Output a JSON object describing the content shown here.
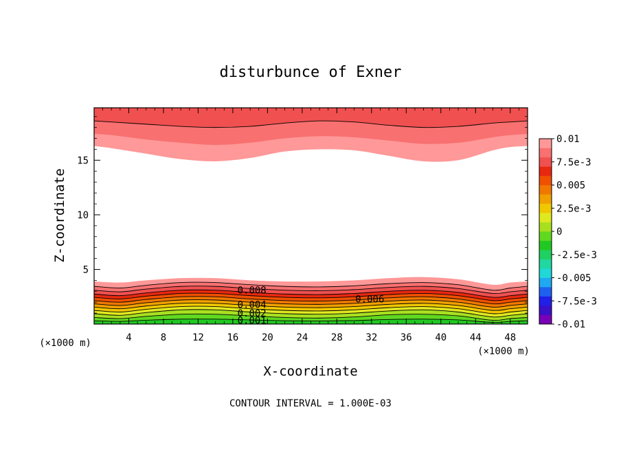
{
  "chart_data": {
    "type": "heatmap",
    "title": "disturbunce of Exner",
    "xlabel": "X-coordinate",
    "ylabel": "Z-coordinate",
    "x_unit_left": "(×1000 m)",
    "x_unit_right": "(×1000 m)",
    "xlim": [
      0,
      50
    ],
    "ylim": [
      0,
      19.8
    ],
    "x_ticks": [
      "4",
      "8",
      "12",
      "16",
      "20",
      "24",
      "28",
      "32",
      "36",
      "40",
      "44",
      "48"
    ],
    "y_ticks": [
      "5",
      "10",
      "15"
    ],
    "contour_interval_text": "CONTOUR INTERVAL = 1.000E-03",
    "contour_labels": [
      {
        "text": "0.008",
        "x": 18.2,
        "z": 3.1
      },
      {
        "text": "0.006",
        "x": 31.8,
        "z": 2.3
      },
      {
        "text": "0.004",
        "x": 18.2,
        "z": 1.8
      },
      {
        "text": "0.002",
        "x": 18.2,
        "z": 1.0
      },
      {
        "text": "0.001",
        "x": 18.2,
        "z": 0.35
      }
    ],
    "colorbar": {
      "labels": [
        "0.01",
        "7.5e-3",
        "0.005",
        "2.5e-3",
        "0",
        "-2.5e-3",
        "-0.005",
        "-7.5e-3",
        "-0.01"
      ],
      "colors": [
        "#7a00b8",
        "#3a10c8",
        "#2020e8",
        "#1f60f0",
        "#20a8f0",
        "#20d8d8",
        "#20d8a0",
        "#20d060",
        "#22c822",
        "#60d820",
        "#a8e020",
        "#e0e820",
        "#f0c800",
        "#f0a000",
        "#f07800",
        "#f05000",
        "#e82810",
        "#f05050",
        "#f87070",
        "#ff9898"
      ]
    },
    "bands": [
      {
        "x": [
          0,
          3,
          6,
          10,
          14,
          18,
          22,
          26,
          30,
          34,
          38,
          42,
          46,
          48,
          50
        ],
        "z": [
          3.9,
          3.8,
          4.0,
          4.2,
          4.2,
          4.0,
          3.9,
          3.9,
          4.0,
          4.2,
          4.3,
          4.1,
          3.6,
          3.8,
          3.9
        ],
        "color": "#ff9898"
      },
      {
        "x": [
          0,
          3,
          6,
          10,
          14,
          18,
          22,
          26,
          30,
          34,
          38,
          42,
          46,
          48,
          50
        ],
        "z": [
          3.45,
          3.3,
          3.55,
          3.8,
          3.8,
          3.6,
          3.45,
          3.4,
          3.5,
          3.7,
          3.8,
          3.6,
          3.1,
          3.3,
          3.45
        ],
        "color": "#f87070"
      },
      {
        "x": [
          0,
          3,
          6,
          10,
          14,
          18,
          22,
          26,
          30,
          34,
          38,
          42,
          46,
          48,
          50
        ],
        "z": [
          3.1,
          2.95,
          3.2,
          3.45,
          3.45,
          3.25,
          3.1,
          3.05,
          3.15,
          3.35,
          3.45,
          3.25,
          2.8,
          2.95,
          3.1
        ],
        "color": "#f05050"
      },
      {
        "x": [
          0,
          3,
          6,
          10,
          14,
          18,
          22,
          26,
          30,
          34,
          38,
          42,
          46,
          48,
          50
        ],
        "z": [
          2.75,
          2.6,
          2.85,
          3.1,
          3.1,
          2.9,
          2.75,
          2.7,
          2.8,
          3.0,
          3.1,
          2.9,
          2.45,
          2.6,
          2.75
        ],
        "color": "#e82810"
      },
      {
        "x": [
          0,
          3,
          6,
          10,
          14,
          18,
          22,
          26,
          30,
          34,
          38,
          42,
          46,
          48,
          50
        ],
        "z": [
          2.45,
          2.3,
          2.55,
          2.8,
          2.8,
          2.6,
          2.45,
          2.4,
          2.5,
          2.7,
          2.8,
          2.6,
          2.15,
          2.3,
          2.45
        ],
        "color": "#f05000"
      },
      {
        "x": [
          0,
          3,
          6,
          10,
          14,
          18,
          22,
          26,
          30,
          34,
          38,
          42,
          46,
          48,
          50
        ],
        "z": [
          2.15,
          2.0,
          2.25,
          2.5,
          2.5,
          2.3,
          2.15,
          2.1,
          2.2,
          2.4,
          2.5,
          2.3,
          1.85,
          2.0,
          2.15
        ],
        "color": "#f07800"
      },
      {
        "x": [
          0,
          3,
          6,
          10,
          14,
          18,
          22,
          26,
          30,
          34,
          38,
          42,
          46,
          48,
          50
        ],
        "z": [
          1.85,
          1.7,
          1.95,
          2.2,
          2.2,
          2.0,
          1.85,
          1.8,
          1.9,
          2.1,
          2.2,
          2.0,
          1.55,
          1.7,
          1.85
        ],
        "color": "#f0a000"
      },
      {
        "x": [
          0,
          3,
          6,
          10,
          14,
          18,
          22,
          26,
          30,
          34,
          38,
          42,
          46,
          48,
          50
        ],
        "z": [
          1.55,
          1.4,
          1.65,
          1.9,
          1.9,
          1.7,
          1.55,
          1.5,
          1.6,
          1.8,
          1.9,
          1.7,
          1.25,
          1.4,
          1.55
        ],
        "color": "#f0c800"
      },
      {
        "x": [
          0,
          3,
          6,
          10,
          14,
          18,
          22,
          26,
          30,
          34,
          38,
          42,
          46,
          48,
          50
        ],
        "z": [
          1.25,
          1.1,
          1.35,
          1.6,
          1.6,
          1.4,
          1.25,
          1.2,
          1.3,
          1.5,
          1.6,
          1.4,
          0.95,
          1.1,
          1.25
        ],
        "color": "#e0e820"
      },
      {
        "x": [
          0,
          3,
          6,
          10,
          14,
          18,
          22,
          26,
          30,
          34,
          38,
          42,
          46,
          48,
          50
        ],
        "z": [
          0.95,
          0.8,
          1.05,
          1.3,
          1.3,
          1.1,
          0.95,
          0.9,
          1.0,
          1.2,
          1.3,
          1.1,
          0.65,
          0.8,
          0.95
        ],
        "color": "#a8e020"
      },
      {
        "x": [
          0,
          3,
          6,
          10,
          14,
          18,
          22,
          26,
          30,
          34,
          38,
          42,
          46,
          48,
          50
        ],
        "z": [
          0.6,
          0.5,
          0.7,
          0.9,
          0.9,
          0.75,
          0.6,
          0.55,
          0.65,
          0.85,
          0.9,
          0.75,
          0.35,
          0.5,
          0.6
        ],
        "color": "#60d820"
      },
      {
        "x": [
          0,
          3,
          6,
          10,
          14,
          18,
          22,
          26,
          30,
          34,
          38,
          42,
          46,
          48,
          50
        ],
        "z": [
          0.3,
          0.25,
          0.35,
          0.45,
          0.45,
          0.38,
          0.3,
          0.28,
          0.32,
          0.42,
          0.45,
          0.38,
          0.15,
          0.25,
          0.3
        ],
        "color": "#22c822"
      }
    ],
    "top_bands": [
      {
        "x": [
          0,
          2,
          6,
          10,
          14,
          18,
          22,
          26,
          30,
          34,
          38,
          42,
          46,
          48,
          50
        ],
        "z": [
          16.3,
          16.1,
          15.6,
          15.1,
          14.9,
          15.2,
          15.8,
          16.0,
          15.9,
          15.4,
          14.9,
          15.0,
          15.9,
          16.2,
          16.3
        ],
        "color": "#ff9898"
      },
      {
        "x": [
          0,
          2,
          6,
          10,
          14,
          18,
          22,
          26,
          30,
          34,
          38,
          42,
          46,
          48,
          50
        ],
        "z": [
          17.4,
          17.3,
          16.9,
          16.6,
          16.4,
          16.6,
          17.0,
          17.2,
          17.1,
          16.8,
          16.5,
          16.6,
          17.1,
          17.3,
          17.4
        ],
        "color": "#f87070"
      },
      {
        "x": [
          0,
          2,
          6,
          10,
          14,
          18,
          22,
          26,
          30,
          34,
          38,
          42,
          46,
          48,
          50
        ],
        "z": [
          18.6,
          18.5,
          18.3,
          18.1,
          18.0,
          18.1,
          18.4,
          18.6,
          18.5,
          18.2,
          18.0,
          18.1,
          18.4,
          18.5,
          18.6
        ],
        "color": "#f05050"
      }
    ]
  }
}
